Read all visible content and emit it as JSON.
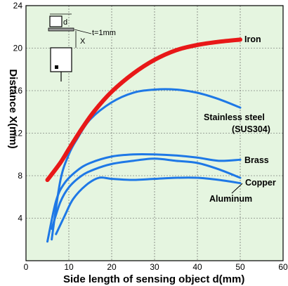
{
  "chart_data": {
    "type": "line",
    "xlabel": "Side length of sensing object d(mm)",
    "ylabel": "Distance X(mm)",
    "xlim": [
      0,
      60
    ],
    "ylim": [
      0,
      24
    ],
    "xticks": [
      0,
      10,
      20,
      30,
      40,
      50,
      60
    ],
    "yticks": [
      4,
      8,
      12,
      16,
      20,
      24
    ],
    "grid": true,
    "background": "#e5f5e0",
    "series": [
      {
        "name": "Iron",
        "color": "#e81818",
        "x": [
          5,
          8,
          10,
          13,
          16,
          20,
          25,
          30,
          35,
          40,
          45,
          50
        ],
        "y": [
          7.6,
          9.2,
          10.5,
          12.4,
          14.1,
          15.9,
          17.6,
          18.9,
          19.8,
          20.3,
          20.6,
          20.8
        ]
      },
      {
        "name": "Stainless steel (SUS304)",
        "color": "#1e78e6",
        "x": [
          6,
          8,
          10,
          12,
          15,
          20,
          25,
          30,
          35,
          40,
          45,
          50
        ],
        "y": [
          2.0,
          7.5,
          10.0,
          11.5,
          13.3,
          14.9,
          15.8,
          16.1,
          16.1,
          15.8,
          15.2,
          14.4
        ]
      },
      {
        "name": "Brass",
        "color": "#1e78e6",
        "x": [
          5,
          7,
          9,
          12,
          15,
          20,
          25,
          30,
          35,
          40,
          45,
          50
        ],
        "y": [
          1.8,
          5.6,
          7.3,
          8.5,
          9.2,
          9.8,
          10.0,
          10.0,
          9.9,
          9.7,
          9.4,
          9.5
        ]
      },
      {
        "name": "Copper",
        "color": "#1e78e6",
        "x": [
          6,
          8,
          10,
          13,
          16,
          20,
          25,
          30,
          35,
          40,
          45,
          50
        ],
        "y": [
          3.0,
          5.5,
          6.9,
          8.0,
          8.6,
          9.1,
          9.4,
          9.6,
          9.4,
          9.2,
          8.6,
          7.8
        ]
      },
      {
        "name": "Aluminum",
        "color": "#1e78e6",
        "x": [
          7,
          9,
          11,
          14,
          17,
          20,
          25,
          30,
          35,
          40,
          45,
          50
        ],
        "y": [
          2.5,
          4.2,
          5.8,
          7.1,
          7.8,
          7.7,
          7.6,
          7.7,
          7.8,
          7.8,
          7.6,
          7.3
        ]
      }
    ],
    "series_labels": [
      "Iron",
      "Stainless steel",
      "(SUS304)",
      "Brass",
      "Copper",
      "Aluminum"
    ]
  },
  "inset": {
    "d_label": "d",
    "t_label": "t=1mm",
    "x_label": "X"
  }
}
